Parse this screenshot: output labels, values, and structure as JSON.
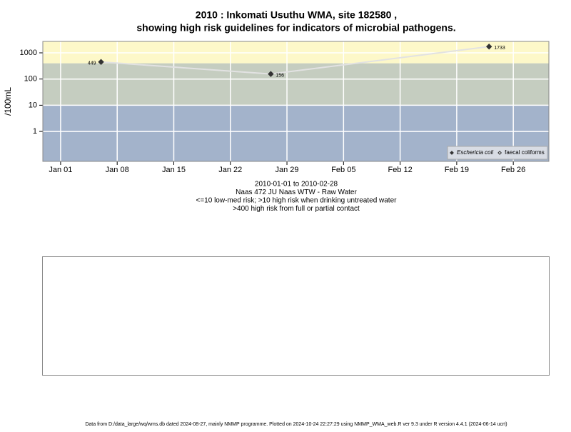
{
  "chart_data": {
    "type": "line",
    "title": "2010 : Inkomati Usuthu WMA, site 182580 ,",
    "subtitle": "showing high risk guidelines for indicators of microbial pathogens.",
    "y_label": "/100mL",
    "x_label_lines": [
      "2010-01-01 to 2010-02-28",
      "Naas 472 JU Naas WTW - Raw Water",
      "<=10 low-med risk; >10 high risk when drinking untreated water",
      ">400 high risk from full or partial contact"
    ],
    "footer": "Data from D:/data_large/wq/wms.db dated 2024-08-27, mainly NMMP programme. Plotted on 2024-10-24 22:27:29 using NMMP_WMA_web.R ver 9.3 under R version 4.4.1 (2024-06-14 ucrt)",
    "log_scale": true,
    "x": [
      6,
      27,
      54
    ],
    "xlim": [
      -1.2,
      61.4
    ],
    "xticks": [
      {
        "value": 1,
        "label": "Jan 01"
      },
      {
        "value": 8,
        "label": "Jan 08"
      },
      {
        "value": 15,
        "label": "Jan 15"
      },
      {
        "value": 22,
        "label": "Jan 22"
      },
      {
        "value": 29,
        "label": "Jan 29"
      },
      {
        "value": 36,
        "label": "Feb 05"
      },
      {
        "value": 43,
        "label": "Feb 12"
      },
      {
        "value": 50,
        "label": "Feb 19"
      },
      {
        "value": 57,
        "label": "Feb 26"
      }
    ],
    "ylim": [
      0.072,
      2730
    ],
    "yticks": [
      1,
      10,
      100,
      1000
    ],
    "bands": [
      {
        "from": 0.072,
        "to": 10,
        "color": "#a3b3cb"
      },
      {
        "from": 10,
        "to": 400,
        "color": "#c5cdc0"
      },
      {
        "from": 400,
        "to": 2730,
        "color": "#fdf8c9"
      }
    ],
    "grid": true,
    "legend_position": "bottom-right",
    "series": [
      {
        "name": "Eschericia coli",
        "color": "#333333",
        "line_color": "#e2e2e2",
        "values": [
          449,
          156,
          1733
        ]
      },
      {
        "name": "faecal coliforms",
        "color": "#333333",
        "line_color": "#e2e2e2",
        "values": [
          null,
          null,
          null
        ]
      }
    ]
  }
}
